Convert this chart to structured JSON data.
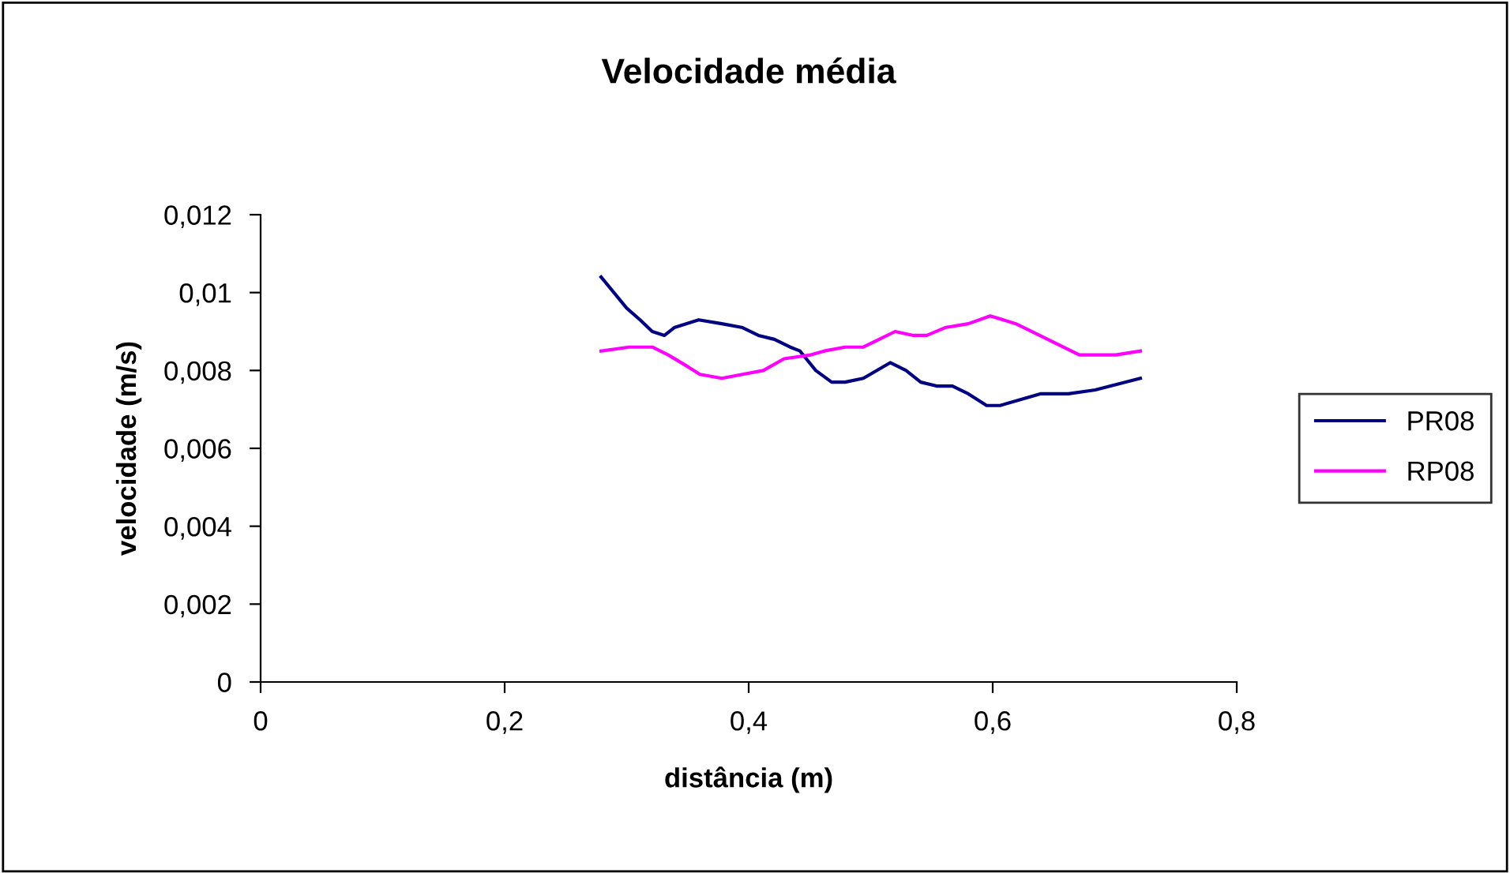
{
  "chart_data": {
    "type": "line",
    "title": "Velocidade média",
    "xlabel": "distância (m)",
    "ylabel": "velocidade (m/s)",
    "xlim": [
      0,
      0.8
    ],
    "xticks": [
      {
        "value": 0,
        "label": "0"
      },
      {
        "value": 0.2,
        "label": "0,2"
      },
      {
        "value": 0.4,
        "label": "0,4"
      },
      {
        "value": 0.6,
        "label": "0,6"
      },
      {
        "value": 0.8,
        "label": "0,8"
      }
    ],
    "ylim": [
      0,
      0.012
    ],
    "yticks": [
      {
        "value": 0,
        "label": "0"
      },
      {
        "value": 0.002,
        "label": "0,002"
      },
      {
        "value": 0.004,
        "label": "0,004"
      },
      {
        "value": 0.006,
        "label": "0,006"
      },
      {
        "value": 0.008,
        "label": "0,008"
      },
      {
        "value": 0.01,
        "label": "0,01"
      },
      {
        "value": 0.012,
        "label": "0,012"
      }
    ],
    "grid": false,
    "legend": "right",
    "marker": "none",
    "line_style": "solid",
    "series": [
      {
        "name": "PR08",
        "color": "#000080",
        "x": [
          0.279,
          0.3,
          0.311,
          0.321,
          0.331,
          0.339,
          0.359,
          0.378,
          0.395,
          0.408,
          0.421,
          0.434,
          0.442,
          0.455,
          0.468,
          0.479,
          0.494,
          0.516,
          0.529,
          0.541,
          0.554,
          0.567,
          0.58,
          0.595,
          0.606,
          0.639,
          0.662,
          0.684,
          0.721
        ],
        "values": [
          0.0104,
          0.0096,
          0.0093,
          0.009,
          0.0089,
          0.0091,
          0.0093,
          0.0092,
          0.0091,
          0.0089,
          0.0088,
          0.0086,
          0.0085,
          0.008,
          0.0077,
          0.0077,
          0.0078,
          0.0082,
          0.008,
          0.0077,
          0.0076,
          0.0076,
          0.0074,
          0.0071,
          0.0071,
          0.0074,
          0.0074,
          0.0075,
          0.0078
        ]
      },
      {
        "name": "RP08",
        "color": "#ff00ff",
        "x": [
          0.279,
          0.302,
          0.321,
          0.334,
          0.35,
          0.36,
          0.378,
          0.395,
          0.412,
          0.429,
          0.451,
          0.462,
          0.479,
          0.494,
          0.507,
          0.52,
          0.535,
          0.546,
          0.561,
          0.58,
          0.598,
          0.619,
          0.645,
          0.671,
          0.701,
          0.721
        ],
        "values": [
          0.0085,
          0.0086,
          0.0086,
          0.0084,
          0.0081,
          0.0079,
          0.0078,
          0.0079,
          0.008,
          0.0083,
          0.0084,
          0.0085,
          0.0086,
          0.0086,
          0.0088,
          0.009,
          0.0089,
          0.0089,
          0.0091,
          0.0092,
          0.0094,
          0.0092,
          0.0088,
          0.0084,
          0.0084,
          0.0085
        ]
      }
    ]
  }
}
